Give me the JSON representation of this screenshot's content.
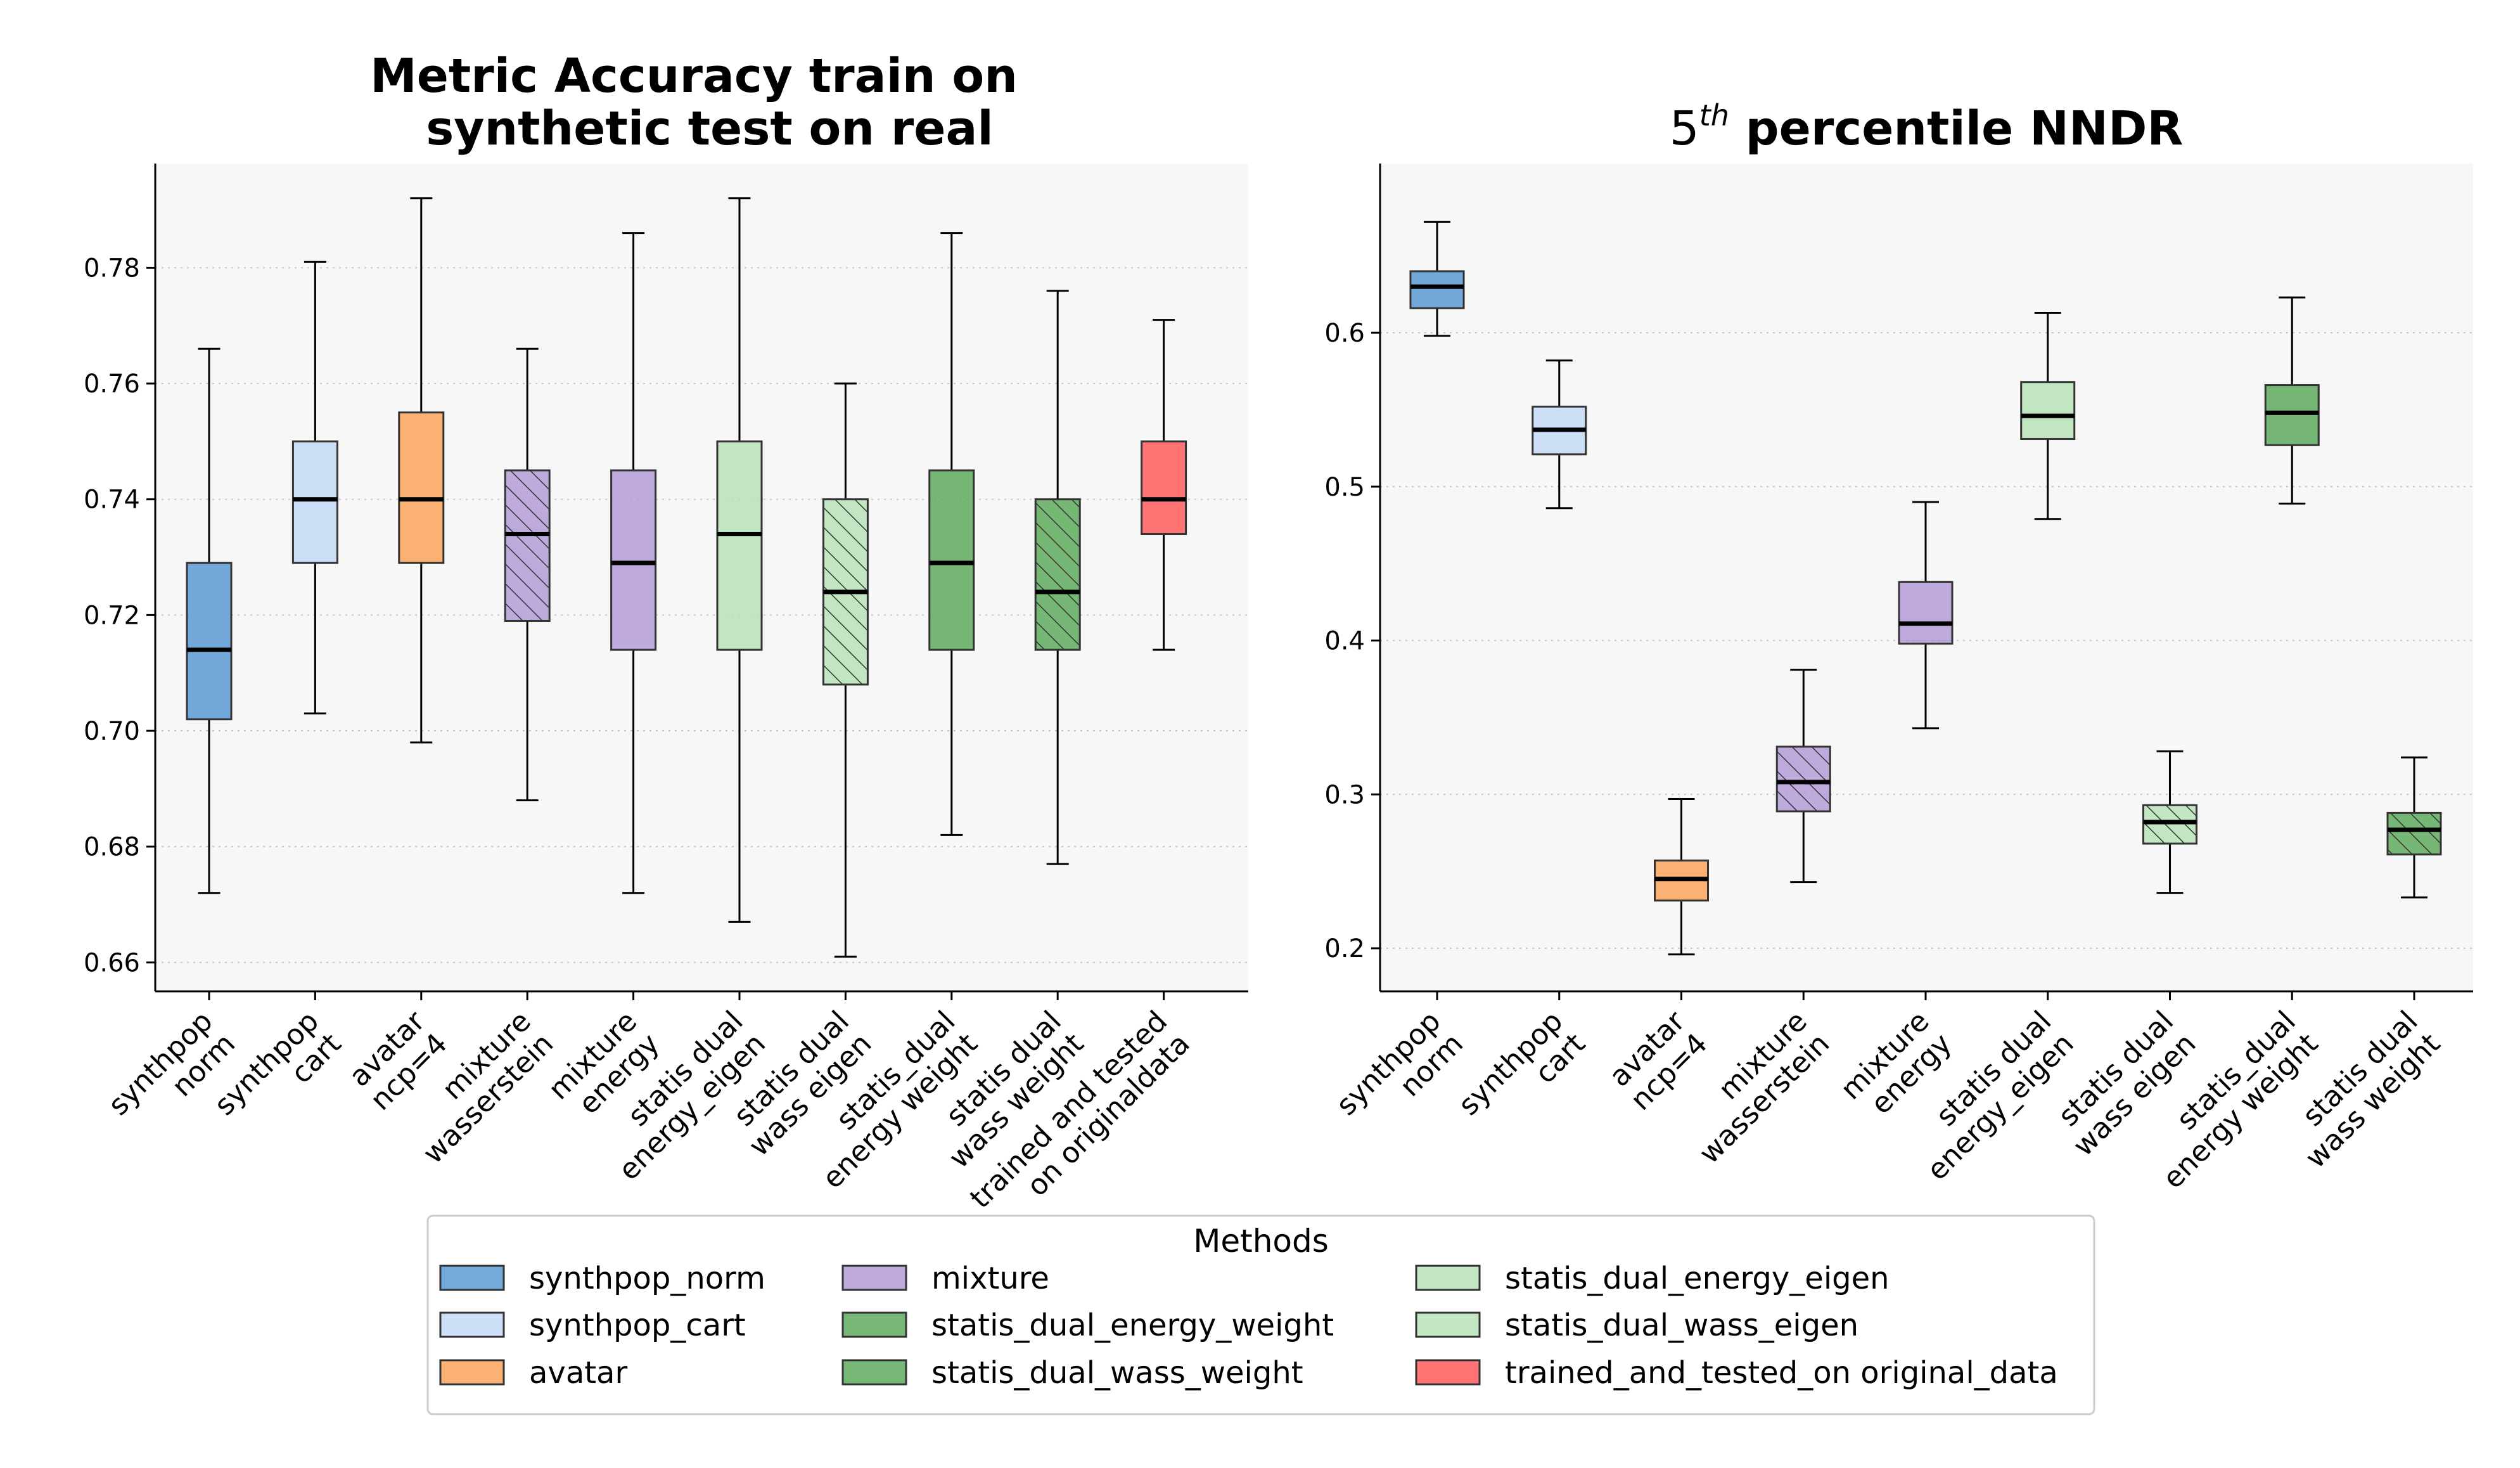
{
  "legend": {
    "title": "Methods",
    "entries": [
      {
        "label": "synthpop_norm",
        "color": "#5b9bd5",
        "hatch": false
      },
      {
        "label": "synthpop_cart",
        "color": "#c6daf7",
        "hatch": false
      },
      {
        "label": "avatar",
        "color": "#fca55d",
        "hatch": false
      },
      {
        "label": "mixture",
        "color": "#b49cd8",
        "hatch": false
      },
      {
        "label": "statis_dual_energy_weight",
        "color": "#5fab5f",
        "hatch": false
      },
      {
        "label": "statis_dual_wass_weight",
        "color": "#5fab5f",
        "hatch": false
      },
      {
        "label": "statis_dual_energy_eigen",
        "color": "#b8e2b8",
        "hatch": false
      },
      {
        "label": "statis_dual_wass_eigen",
        "color": "#b8e2b8",
        "hatch": false
      },
      {
        "label": "trained_and_tested_on original_data",
        "color": "#ff5c5c",
        "hatch": false
      }
    ]
  },
  "chart_data": [
    {
      "type": "box",
      "title_lines": [
        "Metric Accuracy train on",
        "synthetic test on real"
      ],
      "ylim": [
        0.655,
        0.798
      ],
      "yticks": [
        "0.66",
        "0.68",
        "0.70",
        "0.72",
        "0.74",
        "0.76",
        "0.78"
      ],
      "grid": "y-dotted",
      "categories": [
        {
          "label_lines": [
            "synthpop",
            "norm"
          ]
        },
        {
          "label_lines": [
            "synthpop",
            "cart"
          ]
        },
        {
          "label_lines": [
            "avatar",
            "ncp=4"
          ]
        },
        {
          "label_lines": [
            "mixture",
            "wasserstein"
          ]
        },
        {
          "label_lines": [
            "mixture",
            "energy"
          ]
        },
        {
          "label_lines": [
            "statis dual",
            "energy_eigen"
          ]
        },
        {
          "label_lines": [
            "statis dual",
            "wass eigen"
          ]
        },
        {
          "label_lines": [
            "statis_dual",
            "energy weight"
          ]
        },
        {
          "label_lines": [
            "statis dual",
            "wass weight"
          ]
        },
        {
          "label_lines": [
            "trained and tested",
            "on originaldata"
          ]
        }
      ],
      "boxes": [
        {
          "min": 0.672,
          "q1": 0.702,
          "median": 0.714,
          "q3": 0.729,
          "max": 0.766,
          "color": "#5b9bd5",
          "hatch": false
        },
        {
          "min": 0.703,
          "q1": 0.729,
          "median": 0.74,
          "q3": 0.75,
          "max": 0.781,
          "color": "#c6daf7",
          "hatch": false
        },
        {
          "min": 0.698,
          "q1": 0.729,
          "median": 0.74,
          "q3": 0.755,
          "max": 0.792,
          "color": "#fca55d",
          "hatch": false
        },
        {
          "min": 0.688,
          "q1": 0.719,
          "median": 0.734,
          "q3": 0.745,
          "max": 0.766,
          "color": "#b49cd8",
          "hatch": true
        },
        {
          "min": 0.672,
          "q1": 0.714,
          "median": 0.729,
          "q3": 0.745,
          "max": 0.786,
          "color": "#b49cd8",
          "hatch": false
        },
        {
          "min": 0.667,
          "q1": 0.714,
          "median": 0.734,
          "q3": 0.75,
          "max": 0.792,
          "color": "#b8e2b8",
          "hatch": false
        },
        {
          "min": 0.661,
          "q1": 0.708,
          "median": 0.724,
          "q3": 0.74,
          "max": 0.76,
          "color": "#b8e2b8",
          "hatch": true
        },
        {
          "min": 0.682,
          "q1": 0.714,
          "median": 0.729,
          "q3": 0.745,
          "max": 0.786,
          "color": "#5fab5f",
          "hatch": false
        },
        {
          "min": 0.677,
          "q1": 0.714,
          "median": 0.724,
          "q3": 0.74,
          "max": 0.776,
          "color": "#5fab5f",
          "hatch": true
        },
        {
          "min": 0.714,
          "q1": 0.734,
          "median": 0.74,
          "q3": 0.75,
          "max": 0.771,
          "color": "#ff5c5c",
          "hatch": false
        }
      ]
    },
    {
      "type": "box",
      "title_base": "5",
      "title_sup": "th",
      "title_rest": " percentile NNDR",
      "ylim": [
        0.172,
        0.71
      ],
      "yticks": [
        "0.2",
        "0.3",
        "0.4",
        "0.5",
        "0.6"
      ],
      "grid": "y-dotted",
      "categories": [
        {
          "label_lines": [
            "synthpop",
            "norm"
          ]
        },
        {
          "label_lines": [
            "synthpop",
            "cart"
          ]
        },
        {
          "label_lines": [
            "avatar",
            "ncp=4"
          ]
        },
        {
          "label_lines": [
            "mixture",
            "wasserstein"
          ]
        },
        {
          "label_lines": [
            "mixture",
            "energy"
          ]
        },
        {
          "label_lines": [
            "statis dual",
            "energy_eigen"
          ]
        },
        {
          "label_lines": [
            "statis dual",
            "wass eigen"
          ]
        },
        {
          "label_lines": [
            "statis_dual",
            "energy weight"
          ]
        },
        {
          "label_lines": [
            "statis dual",
            "wass weight"
          ]
        }
      ],
      "boxes": [
        {
          "min": 0.598,
          "q1": 0.616,
          "median": 0.63,
          "q3": 0.64,
          "max": 0.672,
          "color": "#5b9bd5",
          "hatch": false
        },
        {
          "min": 0.486,
          "q1": 0.521,
          "median": 0.537,
          "q3": 0.552,
          "max": 0.582,
          "color": "#c6daf7",
          "hatch": false
        },
        {
          "min": 0.196,
          "q1": 0.231,
          "median": 0.245,
          "q3": 0.257,
          "max": 0.297,
          "color": "#fca55d",
          "hatch": false
        },
        {
          "min": 0.243,
          "q1": 0.289,
          "median": 0.308,
          "q3": 0.331,
          "max": 0.381,
          "color": "#b49cd8",
          "hatch": true
        },
        {
          "min": 0.343,
          "q1": 0.398,
          "median": 0.411,
          "q3": 0.438,
          "max": 0.49,
          "color": "#b49cd8",
          "hatch": false
        },
        {
          "min": 0.479,
          "q1": 0.531,
          "median": 0.546,
          "q3": 0.568,
          "max": 0.613,
          "color": "#b8e2b8",
          "hatch": false
        },
        {
          "min": 0.236,
          "q1": 0.268,
          "median": 0.282,
          "q3": 0.293,
          "max": 0.328,
          "color": "#b8e2b8",
          "hatch": true
        },
        {
          "min": 0.489,
          "q1": 0.527,
          "median": 0.548,
          "q3": 0.566,
          "max": 0.623,
          "color": "#5fab5f",
          "hatch": false
        },
        {
          "min": 0.233,
          "q1": 0.261,
          "median": 0.277,
          "q3": 0.288,
          "max": 0.324,
          "color": "#5fab5f",
          "hatch": true
        }
      ]
    }
  ]
}
